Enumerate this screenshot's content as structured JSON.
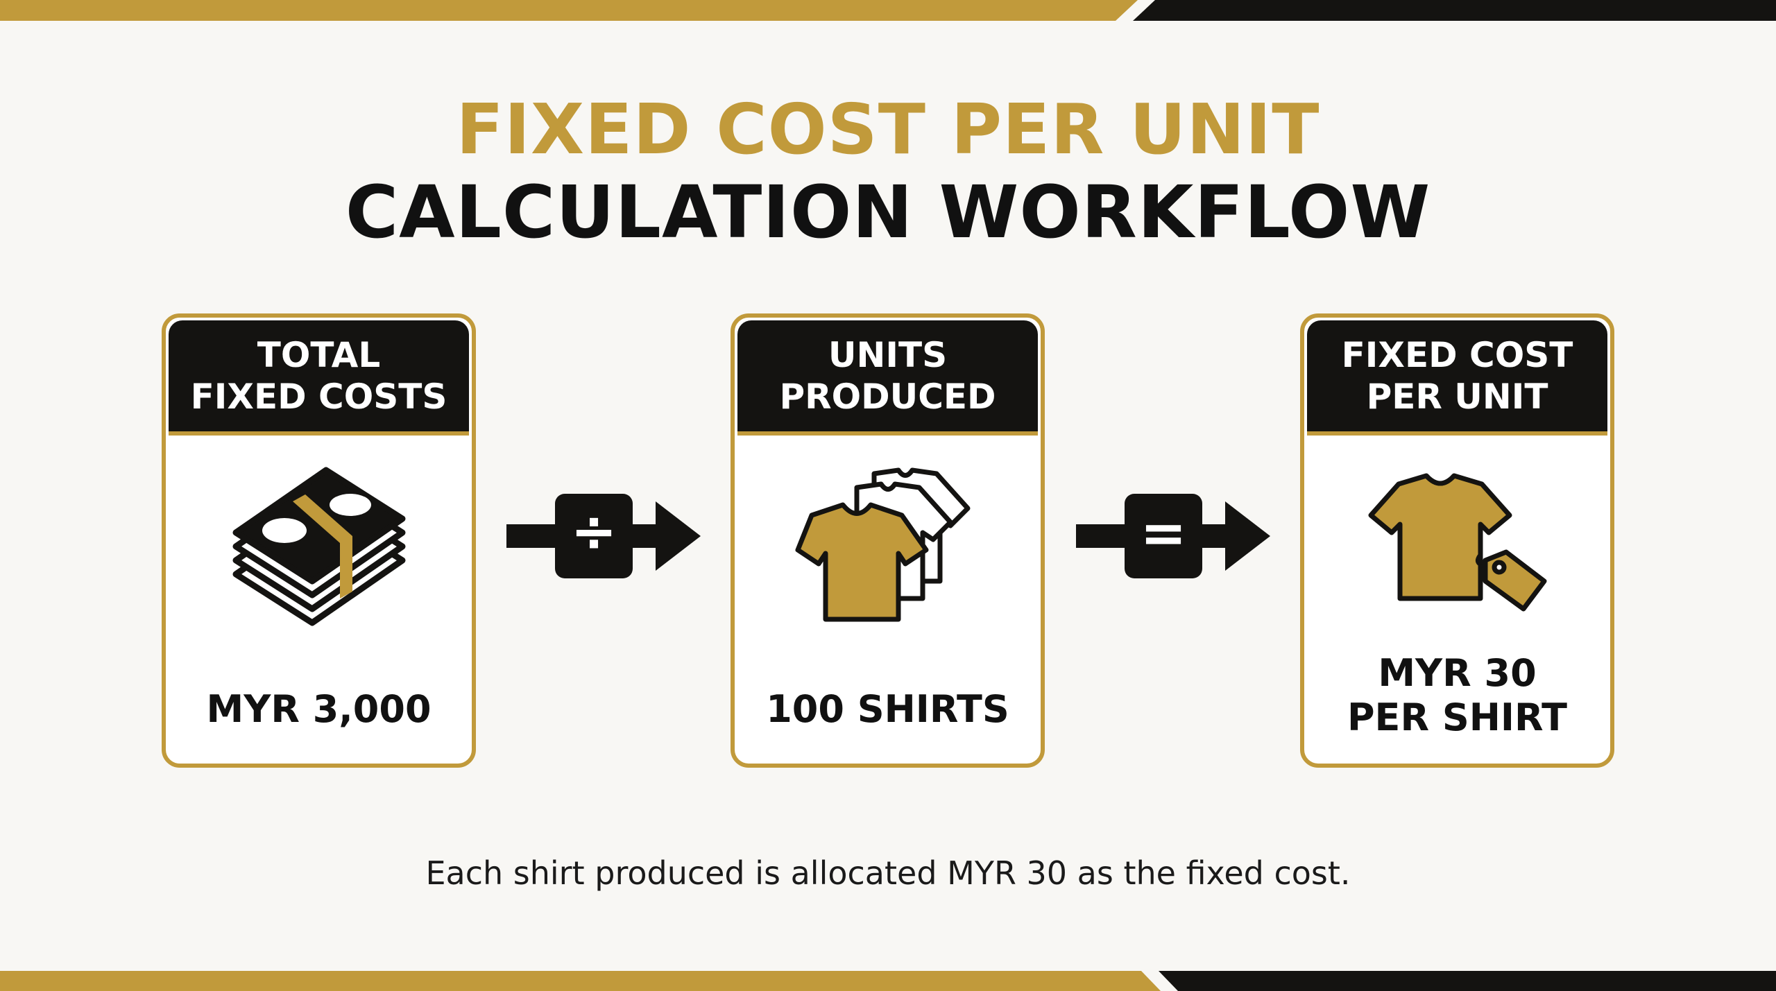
{
  "title": {
    "line1": "FIXED COST PER UNIT",
    "line2": "CALCULATION WORKFLOW"
  },
  "colors": {
    "gold": "#c19a3b",
    "black": "#141311",
    "background": "#f8f7f4"
  },
  "cards": [
    {
      "header_line1": "TOTAL",
      "header_line2": "FIXED COSTS",
      "icon": "money-stack-icon",
      "value_line1": "MYR 3,000"
    },
    {
      "header_line1": "UNITS",
      "header_line2": "PRODUCED",
      "icon": "shirts-stack-icon",
      "value_line1": "100 SHIRTS"
    },
    {
      "header_line1": "FIXED COST",
      "header_line2": "PER UNIT",
      "icon": "shirt-price-tag-icon",
      "value_line1": "MYR 30",
      "value_line2": "PER SHIRT"
    }
  ],
  "operators": [
    {
      "icon": "divide-arrow-icon",
      "symbol": "÷"
    },
    {
      "icon": "equals-arrow-icon",
      "symbol": "="
    }
  ],
  "caption": "Each shirt produced is allocated MYR 30 as the fixed cost."
}
